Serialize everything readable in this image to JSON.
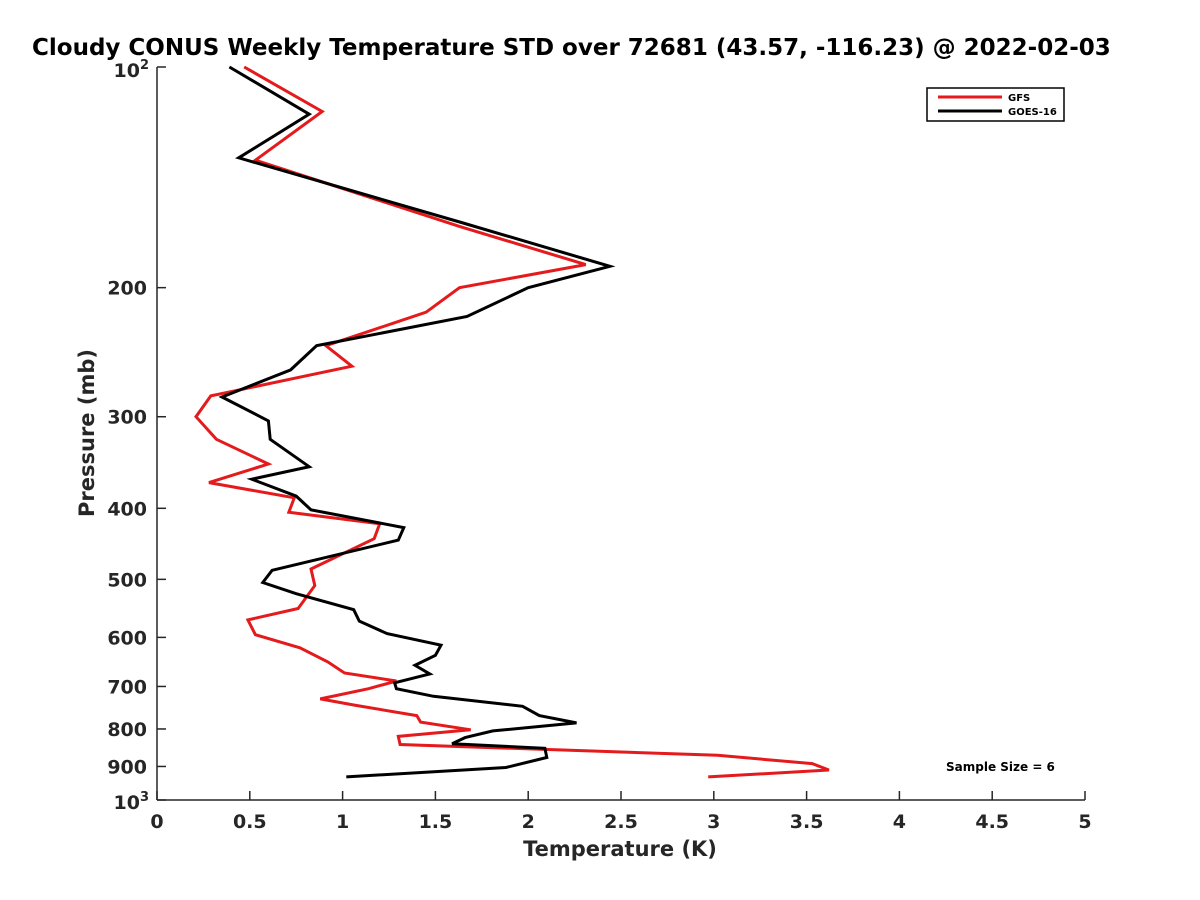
{
  "chart_data": {
    "type": "line",
    "title": "Cloudy CONUS Weekly Temperature STD over 72681 (43.57, -116.23) @ 2022-02-03",
    "xlabel": "Temperature (K)",
    "ylabel": "Pressure (mb)",
    "xlim": [
      0,
      5
    ],
    "ylim": [
      100,
      1000
    ],
    "yscale": "log",
    "y_reversed": true,
    "grid": false,
    "legend_position": "top-right",
    "xticks": [
      0,
      0.5,
      1,
      1.5,
      2,
      2.5,
      3,
      3.5,
      4,
      4.5,
      5
    ],
    "xtick_labels": [
      "0",
      "0.5",
      "1",
      "1.5",
      "2",
      "2.5",
      "3",
      "3.5",
      "4",
      "4.5",
      "5"
    ],
    "yticks": [
      200,
      300,
      400,
      500,
      600,
      700,
      800,
      900
    ],
    "ytick_labels": [
      "200",
      "300",
      "400",
      "500",
      "600",
      "700",
      "800",
      "900"
    ],
    "ytick_pow_top": {
      "base": "10",
      "exp": "2",
      "value": 100
    },
    "ytick_pow_bottom": {
      "base": "10",
      "exp": "3",
      "value": 1000
    },
    "annotation": "Sample Size = 6",
    "series": [
      {
        "name": "GFS",
        "color": "#e41a1c",
        "points": [
          [
            0.47,
            100
          ],
          [
            0.89,
            115
          ],
          [
            0.53,
            134
          ],
          [
            1.63,
            165
          ],
          [
            2.31,
            186
          ],
          [
            1.63,
            200
          ],
          [
            1.45,
            216
          ],
          [
            0.91,
            240
          ],
          [
            1.05,
            256
          ],
          [
            0.29,
            281
          ],
          [
            0.21,
            300
          ],
          [
            0.32,
            322
          ],
          [
            0.6,
            348
          ],
          [
            0.28,
            369
          ],
          [
            0.74,
            387
          ],
          [
            0.71,
            405
          ],
          [
            1.2,
            420
          ],
          [
            1.17,
            440
          ],
          [
            0.83,
            484
          ],
          [
            0.85,
            510
          ],
          [
            0.76,
            548
          ],
          [
            0.49,
            568
          ],
          [
            0.53,
            595
          ],
          [
            0.77,
            620
          ],
          [
            0.92,
            648
          ],
          [
            1.01,
            671
          ],
          [
            1.29,
            688
          ],
          [
            1.14,
            705
          ],
          [
            0.88,
            728
          ],
          [
            1.06,
            742
          ],
          [
            1.4,
            767
          ],
          [
            1.42,
            783
          ],
          [
            1.69,
            802
          ],
          [
            1.3,
            819
          ],
          [
            1.31,
            840
          ],
          [
            3.02,
            869
          ],
          [
            3.53,
            892
          ],
          [
            3.62,
            910
          ],
          [
            2.97,
            930
          ]
        ]
      },
      {
        "name": "GOES-16",
        "color": "#000000",
        "points": [
          [
            0.39,
            100
          ],
          [
            0.82,
            116
          ],
          [
            0.44,
            133
          ],
          [
            1.64,
            163
          ],
          [
            2.44,
            187
          ],
          [
            2.0,
            200
          ],
          [
            1.67,
            219
          ],
          [
            0.86,
            240
          ],
          [
            0.72,
            259
          ],
          [
            0.35,
            282
          ],
          [
            0.6,
            304
          ],
          [
            0.61,
            322
          ],
          [
            0.82,
            351
          ],
          [
            0.51,
            365
          ],
          [
            0.75,
            385
          ],
          [
            0.83,
            402
          ],
          [
            1.33,
            425
          ],
          [
            1.3,
            442
          ],
          [
            0.62,
            486
          ],
          [
            0.57,
            505
          ],
          [
            0.75,
            523
          ],
          [
            1.06,
            550
          ],
          [
            1.09,
            570
          ],
          [
            1.24,
            593
          ],
          [
            1.53,
            615
          ],
          [
            1.5,
            635
          ],
          [
            1.39,
            655
          ],
          [
            1.47,
            673
          ],
          [
            1.28,
            692
          ],
          [
            1.29,
            705
          ],
          [
            1.49,
            722
          ],
          [
            1.97,
            745
          ],
          [
            2.06,
            767
          ],
          [
            2.26,
            785
          ],
          [
            1.81,
            805
          ],
          [
            1.66,
            822
          ],
          [
            1.59,
            838
          ],
          [
            2.09,
            850
          ],
          [
            2.1,
            875
          ],
          [
            1.88,
            903
          ],
          [
            1.02,
            930
          ]
        ]
      }
    ]
  }
}
